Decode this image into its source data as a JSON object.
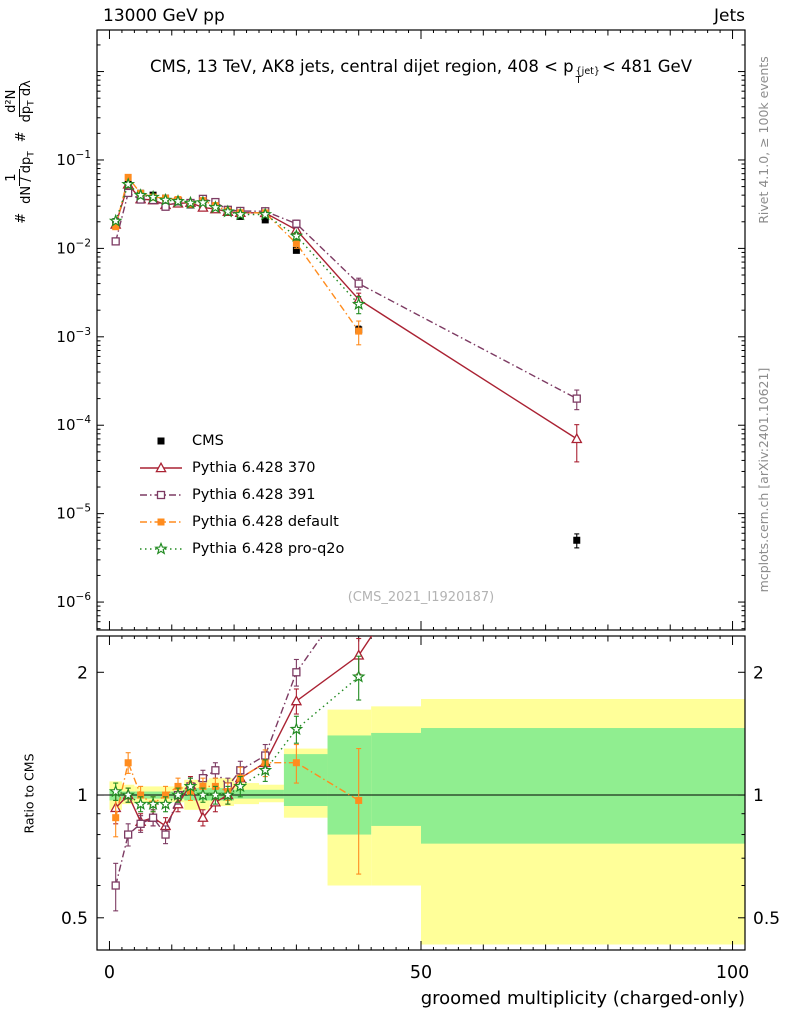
{
  "header": {
    "left": "13000 GeV pp",
    "right": "Jets"
  },
  "title": {
    "pre": "CMS, 13 TeV, AK8 jets, central dijet region, 408 < p",
    "sup": "{jet}",
    "sub": "T",
    "post": "< 481 GeV"
  },
  "ylabel": {
    "hash1": "#",
    "f1num": "1",
    "f1den": "dN / dp",
    "f1den_sub": "T",
    "hash2": "#",
    "f2num": "d²N",
    "f2den_a": "dp",
    "f2den_sub": "T",
    "f2den_b": " dλ"
  },
  "side_labels": {
    "rivet": "Rivet 4.1.0, ≥ 100k events",
    "mcplots": "mcplots.cern.ch [arXiv:2401.10621]"
  },
  "watermark": "(CMS_2021_I1920187)",
  "ratio_panel": {
    "ylabel": "Ratio to CMS"
  },
  "xlabel": "groomed multiplicity (charged-only)",
  "chart_data": {
    "type": "line",
    "title": "CMS, 13 TeV, AK8 jets, central dijet region, 408 < pT^{jet} < 481 GeV",
    "xlabel": "groomed multiplicity (charged-only)",
    "ylabel": "# 1/(dN/dpT) d²N/(dpT dλ)",
    "ratio_ylabel": "Ratio to CMS",
    "legend_position": "middle-left",
    "grid": false,
    "xlim": [
      -2,
      102
    ],
    "main_ylog_exp": [
      -6.316,
      0.47
    ],
    "ratio_ylog_exp": [
      -0.38,
      0.39
    ],
    "xticks": [
      0,
      50,
      100
    ],
    "main_yticks_exp": [
      -1,
      -2,
      -3,
      -4,
      -5,
      -6
    ],
    "ratio_yticks": [
      0.5,
      1,
      2
    ],
    "x": [
      1,
      3,
      5,
      7,
      9,
      11,
      13,
      15,
      17,
      19,
      21,
      25,
      30,
      40,
      75
    ],
    "series": [
      {
        "name": "CMS",
        "color": "#000000",
        "marker": "square_filled",
        "line": "none",
        "y": [
          0.02,
          0.053,
          0.042,
          0.04,
          0.037,
          0.034,
          0.031,
          0.033,
          0.029,
          0.026,
          0.023,
          0.021,
          0.0095,
          0.0012,
          5e-06
        ],
        "yerr_frac": [
          0.08,
          0.04,
          0.04,
          0.04,
          0.04,
          0.04,
          0.04,
          0.04,
          0.04,
          0.04,
          0.05,
          0.05,
          0.06,
          0.1,
          0.18
        ]
      },
      {
        "name": "Pythia 6.428 370",
        "color": "#aa2233",
        "marker": "triangle_open",
        "line": "solid",
        "y": [
          0.0186,
          0.053,
          0.0361,
          0.0352,
          0.0311,
          0.0323,
          0.0329,
          0.029,
          0.0278,
          0.026,
          0.0253,
          0.0252,
          0.0162,
          0.00264,
          7e-05
        ],
        "yerr_frac": [
          0.06,
          0.04,
          0.04,
          0.04,
          0.04,
          0.04,
          0.04,
          0.04,
          0.04,
          0.05,
          0.05,
          0.06,
          0.1,
          0.18,
          0.45
        ],
        "ratio": [
          0.93,
          1.0,
          0.86,
          0.88,
          0.84,
          0.95,
          1.06,
          0.88,
          0.96,
          1.0,
          1.1,
          1.2,
          1.7,
          2.2,
          14.0
        ],
        "ratio_err": [
          0.08,
          0.04,
          0.04,
          0.04,
          0.04,
          0.04,
          0.05,
          0.04,
          0.05,
          0.05,
          0.06,
          0.07,
          0.12,
          0.22,
          null
        ]
      },
      {
        "name": "Pythia 6.428 391",
        "color": "#7d3b63",
        "marker": "square_open",
        "line": "dashdot",
        "y": [
          0.012,
          0.0424,
          0.0357,
          0.0352,
          0.0296,
          0.034,
          0.0326,
          0.0363,
          0.0334,
          0.0273,
          0.0265,
          0.0263,
          0.019,
          0.004,
          0.0002
        ],
        "yerr_frac": [
          0.07,
          0.04,
          0.04,
          0.04,
          0.04,
          0.04,
          0.04,
          0.04,
          0.04,
          0.05,
          0.05,
          0.06,
          0.1,
          0.15,
          0.25
        ],
        "ratio": [
          0.6,
          0.8,
          0.85,
          0.88,
          0.8,
          1.0,
          1.05,
          1.1,
          1.15,
          1.05,
          1.15,
          1.25,
          2.0,
          3.3,
          40.0
        ],
        "ratio_err": [
          0.08,
          0.05,
          0.04,
          0.04,
          0.04,
          0.05,
          0.05,
          0.05,
          0.05,
          0.05,
          0.06,
          0.08,
          0.15,
          0.4,
          null
        ]
      },
      {
        "name": "Pythia 6.428 default",
        "color": "#ff8c1e",
        "marker": "square_filled",
        "line": "dashdot",
        "y": [
          0.0176,
          0.0636,
          0.042,
          0.038,
          0.037,
          0.0357,
          0.0316,
          0.0347,
          0.0305,
          0.0265,
          0.0253,
          0.0252,
          0.0114,
          0.00116,
          null
        ],
        "yerr_frac": [
          0.07,
          0.05,
          0.04,
          0.04,
          0.04,
          0.04,
          0.04,
          0.04,
          0.05,
          0.05,
          0.06,
          0.07,
          0.12,
          0.3,
          null
        ],
        "ratio": [
          0.88,
          1.2,
          1.0,
          0.95,
          1.0,
          1.05,
          1.02,
          1.05,
          1.05,
          1.02,
          1.1,
          1.2,
          1.2,
          0.97,
          null
        ],
        "ratio_err": [
          0.09,
          0.07,
          0.05,
          0.04,
          0.05,
          0.05,
          0.05,
          0.05,
          0.05,
          0.05,
          0.07,
          0.09,
          0.13,
          0.33,
          null
        ]
      },
      {
        "name": "Pythia 6.428 pro-q2o",
        "color": "#228b22",
        "marker": "star_open",
        "line": "dotted",
        "y": [
          0.0204,
          0.053,
          0.0399,
          0.038,
          0.0352,
          0.034,
          0.0326,
          0.033,
          0.029,
          0.026,
          0.0242,
          0.0242,
          0.0138,
          0.00234,
          null
        ],
        "yerr_frac": [
          0.06,
          0.04,
          0.04,
          0.04,
          0.04,
          0.04,
          0.04,
          0.04,
          0.04,
          0.05,
          0.05,
          0.06,
          0.1,
          0.22,
          null
        ],
        "ratio": [
          1.02,
          1.0,
          0.95,
          0.95,
          0.95,
          1.0,
          1.05,
          1.0,
          1.0,
          1.0,
          1.05,
          1.15,
          1.45,
          1.95,
          null
        ],
        "ratio_err": [
          0.05,
          0.04,
          0.04,
          0.04,
          0.04,
          0.04,
          0.05,
          0.04,
          0.05,
          0.05,
          0.06,
          0.07,
          0.11,
          0.24,
          null
        ]
      }
    ],
    "bands": {
      "yellow_color": "#ffff99",
      "green_color": "#90ee90",
      "yellow": [
        [
          0,
          2,
          0.92,
          1.08
        ],
        [
          2,
          4,
          0.95,
          1.06
        ],
        [
          4,
          12,
          0.96,
          1.05
        ],
        [
          12,
          16,
          0.92,
          1.09
        ],
        [
          16,
          20,
          0.94,
          1.1
        ],
        [
          20,
          24,
          0.95,
          1.07
        ],
        [
          24,
          28,
          0.96,
          1.06
        ],
        [
          28,
          35,
          0.88,
          1.3
        ],
        [
          35,
          42,
          0.6,
          1.62
        ],
        [
          42,
          50,
          0.6,
          1.65
        ],
        [
          50,
          102,
          0.43,
          1.72
        ]
      ],
      "green": [
        [
          0,
          2,
          0.97,
          1.03
        ],
        [
          2,
          12,
          0.98,
          1.02
        ],
        [
          12,
          20,
          0.97,
          1.04
        ],
        [
          20,
          28,
          0.98,
          1.03
        ],
        [
          28,
          35,
          0.94,
          1.26
        ],
        [
          35,
          42,
          0.8,
          1.4
        ],
        [
          42,
          50,
          0.84,
          1.42
        ],
        [
          50,
          102,
          0.76,
          1.46
        ]
      ]
    }
  }
}
